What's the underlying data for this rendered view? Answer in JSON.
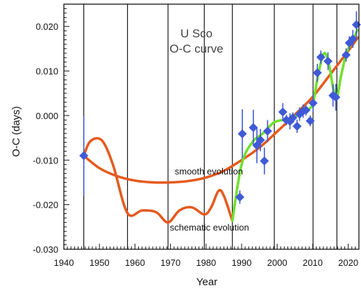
{
  "chart_data": {
    "type": "scatter",
    "title_lines": [
      "U Sco",
      "O-C curve"
    ],
    "xlabel": "Year",
    "ylabel": "O-C (days)",
    "xlim": [
      1940,
      2023
    ],
    "ylim": [
      -0.03,
      0.025
    ],
    "x_ticks": [
      1940,
      1950,
      1960,
      1970,
      1980,
      1990,
      2000,
      2010,
      2020
    ],
    "y_ticks": [
      {
        "value": 0.02,
        "label": "0.020"
      },
      {
        "value": 0.01,
        "label": "0.010"
      },
      {
        "value": 0.0,
        "label": "0.000"
      },
      {
        "value": -0.01,
        "label": "-0.010"
      },
      {
        "value": -0.02,
        "label": "-0.020"
      },
      {
        "value": -0.03,
        "label": "-0.030"
      }
    ],
    "eruption_years": [
      1945.6,
      1957.9,
      1969.3,
      1979.5,
      1987.4,
      1999.2,
      2010.1,
      2016.8
    ],
    "points": [
      {
        "x": 1945.6,
        "y": -0.009,
        "err": 0.009
      },
      {
        "x": 1989.5,
        "y": -0.0183,
        "err": 0.0015
      },
      {
        "x": 1990.2,
        "y": -0.0041,
        "err": 0.0055
      },
      {
        "x": 1993.3,
        "y": -0.0027,
        "err": 0.004
      },
      {
        "x": 1994.3,
        "y": -0.0067,
        "err": 0.004
      },
      {
        "x": 1995.3,
        "y": -0.0055,
        "err": 0.0025
      },
      {
        "x": 1996.4,
        "y": -0.0102,
        "err": 0.003
      },
      {
        "x": 1997.3,
        "y": -0.0035,
        "err": 0.0025
      },
      {
        "x": 2001.6,
        "y": 0.0008,
        "err": 0.002
      },
      {
        "x": 2002.6,
        "y": -0.001,
        "err": 0.0012
      },
      {
        "x": 2003.6,
        "y": -0.0013,
        "err": 0.0018
      },
      {
        "x": 2004.4,
        "y": -0.0005,
        "err": 0.0012
      },
      {
        "x": 2005.6,
        "y": -0.0024,
        "err": 0.0015
      },
      {
        "x": 2006.3,
        "y": 0.0003,
        "err": 0.0015
      },
      {
        "x": 2007.3,
        "y": 0.001,
        "err": 0.0015
      },
      {
        "x": 2008.1,
        "y": 0.0012,
        "err": 0.0012
      },
      {
        "x": 2009.3,
        "y": -0.0012,
        "err": 0.0012
      },
      {
        "x": 2010.1,
        "y": 0.0028,
        "err": 0.002
      },
      {
        "x": 2011.3,
        "y": 0.0096,
        "err": 0.002
      },
      {
        "x": 2012.3,
        "y": 0.0131,
        "err": 0.0015
      },
      {
        "x": 2014.3,
        "y": 0.0122,
        "err": 0.002
      },
      {
        "x": 2015.7,
        "y": 0.0045,
        "err": 0.0025
      },
      {
        "x": 2016.5,
        "y": 0.0041,
        "err": 0.003
      },
      {
        "x": 2019.4,
        "y": 0.0136,
        "err": 0.0015
      },
      {
        "x": 2020.3,
        "y": 0.0163,
        "err": 0.0015
      },
      {
        "x": 2021.3,
        "y": 0.0172,
        "err": 0.002
      },
      {
        "x": 2022.3,
        "y": 0.0204,
        "err": 0.003
      }
    ],
    "series": [
      {
        "label": "smooth evolution",
        "color": "#e55a1e",
        "points": [
          [
            1945.6,
            -0.009
          ],
          [
            1950,
            -0.0118
          ],
          [
            1955,
            -0.0136
          ],
          [
            1960,
            -0.0146
          ],
          [
            1965,
            -0.015
          ],
          [
            1970,
            -0.015
          ],
          [
            1975,
            -0.0147
          ],
          [
            1980,
            -0.0139
          ],
          [
            1985,
            -0.0124
          ],
          [
            1990,
            -0.01
          ],
          [
            1995,
            -0.0072
          ],
          [
            2000,
            -0.0036
          ],
          [
            2005,
            0.0002
          ],
          [
            2010,
            0.0042
          ],
          [
            2015,
            0.0093
          ],
          [
            2020,
            0.0145
          ],
          [
            2022.7,
            0.0175
          ]
        ]
      },
      {
        "label": "schematic evolution",
        "color": "#e55a1e",
        "points": [
          [
            1945.6,
            -0.009
          ],
          [
            1947.2,
            -0.006
          ],
          [
            1949.5,
            -0.0051
          ],
          [
            1951.5,
            -0.0065
          ],
          [
            1954,
            -0.0115
          ],
          [
            1957.9,
            -0.0219
          ],
          [
            1962,
            -0.0213
          ],
          [
            1966,
            -0.0217
          ],
          [
            1969.3,
            -0.024
          ],
          [
            1972.5,
            -0.0213
          ],
          [
            1976,
            -0.0206
          ],
          [
            1979.5,
            -0.0222
          ],
          [
            1981.5,
            -0.0205
          ],
          [
            1983.5,
            -0.0169
          ],
          [
            1985,
            -0.018
          ],
          [
            1987.4,
            -0.0236
          ]
        ]
      },
      {
        "label": "",
        "color": "#6fe02c",
        "points": [
          [
            1987.4,
            -0.0236
          ],
          [
            1990,
            -0.011
          ],
          [
            1993,
            -0.006
          ],
          [
            1996,
            -0.004
          ],
          [
            1999.2,
            -0.0015
          ],
          [
            2003,
            -0.0008
          ],
          [
            2007,
            0.0005
          ],
          [
            2009,
            0.0015
          ],
          [
            2010.1,
            0.0028
          ],
          [
            2011.3,
            0.0082
          ],
          [
            2012.5,
            0.0125
          ],
          [
            2013.5,
            0.014
          ],
          [
            2014.7,
            0.011
          ],
          [
            2015.8,
            0.006
          ],
          [
            2016.8,
            0.004
          ],
          [
            2018,
            0.009
          ],
          [
            2019.5,
            0.014
          ],
          [
            2021,
            0.0165
          ],
          [
            2022.6,
            0.0192
          ]
        ]
      }
    ],
    "annotations": [
      {
        "text": "smooth evolution",
        "x": 1971.2,
        "y": -0.0132
      },
      {
        "text": "schematic evolution",
        "x": 1969.8,
        "y": -0.0258
      }
    ],
    "colors": {
      "points": "#3f5ad6",
      "eruption_lines": "#000000"
    },
    "grid": false
  }
}
